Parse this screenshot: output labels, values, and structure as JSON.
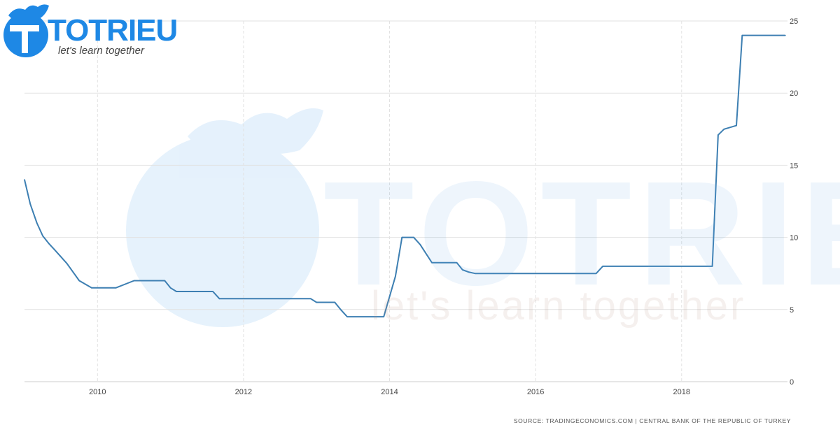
{
  "logo": {
    "name": "TOTRIEU",
    "tagline": "let's learn together",
    "color": "#1e88e5",
    "watermark_text_color": "#6aaee8",
    "watermark_tagline_color": "#b08a7a"
  },
  "source_note": "SOURCE: TRADINGECONOMICS.COM  |  CENTRAL BANK OF THE REPUBLIC OF TURKEY",
  "chart_data": {
    "type": "line",
    "title": "",
    "xlabel": "",
    "ylabel": "",
    "xlim": [
      2009.0,
      2019.45
    ],
    "ylim": [
      0,
      25
    ],
    "x_ticks": [
      2010,
      2012,
      2014,
      2016,
      2018
    ],
    "y_ticks": [
      0,
      5,
      10,
      15,
      20,
      25
    ],
    "y_axis_side": "right",
    "grid": true,
    "line_color": "#3d7fb2",
    "series": [
      {
        "x": [
          2009.0,
          2009.08,
          2009.17,
          2009.25,
          2009.33,
          2009.42,
          2009.58,
          2009.75,
          2009.92,
          2010.25,
          2010.5,
          2010.92,
          2011.0,
          2011.08,
          2011.58,
          2011.67,
          2012.92,
          2013.0,
          2013.25,
          2013.33,
          2013.42,
          2013.83,
          2013.92,
          2014.08,
          2014.17,
          2014.33,
          2014.42,
          2014.58,
          2014.92,
          2015.0,
          2015.08,
          2015.17,
          2015.42,
          2016.83,
          2016.92,
          2018.42,
          2018.5,
          2018.58,
          2018.75,
          2018.83,
          2019.42
        ],
        "y": [
          14.0,
          12.3,
          11.0,
          10.1,
          9.6,
          9.1,
          8.2,
          7.0,
          6.5,
          6.5,
          7.0,
          7.0,
          6.5,
          6.25,
          6.25,
          5.75,
          5.75,
          5.5,
          5.5,
          5.0,
          4.5,
          4.5,
          4.5,
          7.3,
          10.0,
          10.0,
          9.5,
          8.25,
          8.25,
          7.75,
          7.6,
          7.5,
          7.5,
          7.5,
          8.0,
          8.0,
          17.1,
          17.5,
          17.75,
          24.0,
          24.0
        ]
      }
    ]
  }
}
